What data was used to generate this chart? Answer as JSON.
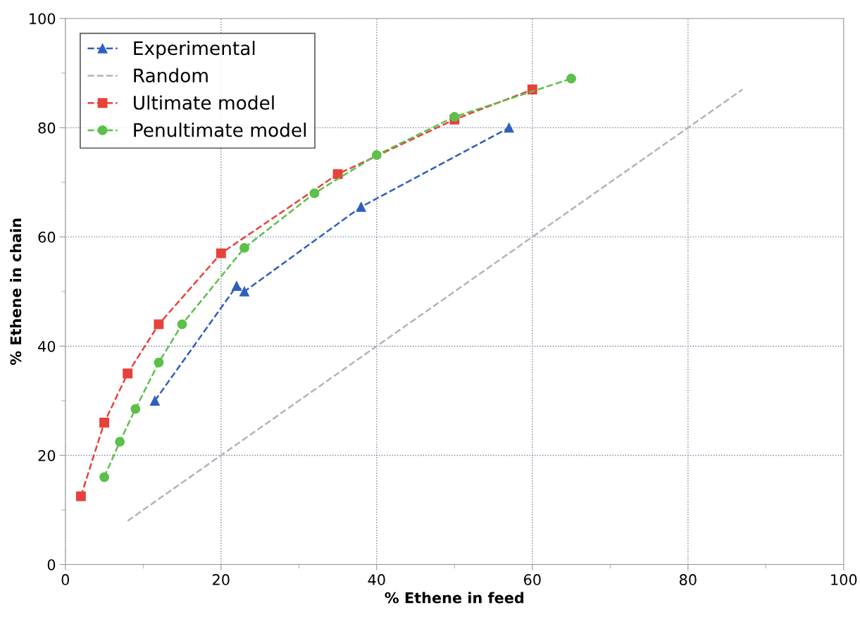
{
  "chart_data": {
    "type": "line",
    "xlabel": "% Ethene in feed",
    "ylabel": "% Ethene in chain",
    "xlim": [
      0,
      100
    ],
    "ylim": [
      0,
      100
    ],
    "xticks": [
      0,
      20,
      40,
      60,
      80,
      100
    ],
    "yticks": [
      0,
      20,
      40,
      60,
      80,
      100
    ],
    "grid": true,
    "legend": "top left",
    "line_style": "dashed",
    "series": [
      {
        "name": "Experimental",
        "color": "#2f5fbf",
        "marker": "triangle",
        "x": [
          11.5,
          22,
          23,
          38,
          57
        ],
        "values": [
          30,
          51,
          50,
          65.5,
          80
        ]
      },
      {
        "name": "Random",
        "color": "#b4b4b4",
        "marker": "none",
        "x": [
          8,
          87
        ],
        "values": [
          8,
          87
        ]
      },
      {
        "name": "Ultimate model",
        "color": "#e8413a",
        "marker": "square",
        "x": [
          2,
          5,
          8,
          12,
          20,
          35,
          50,
          60
        ],
        "values": [
          12.5,
          26,
          35,
          44,
          57,
          71.5,
          81.5,
          87
        ]
      },
      {
        "name": "Penultimate model",
        "color": "#5cc04a",
        "marker": "circle",
        "x": [
          5,
          7,
          9,
          12,
          15,
          23,
          32,
          40,
          50,
          65
        ],
        "values": [
          16,
          22.5,
          28.5,
          37,
          44,
          58,
          68,
          75,
          82,
          89
        ]
      }
    ]
  }
}
